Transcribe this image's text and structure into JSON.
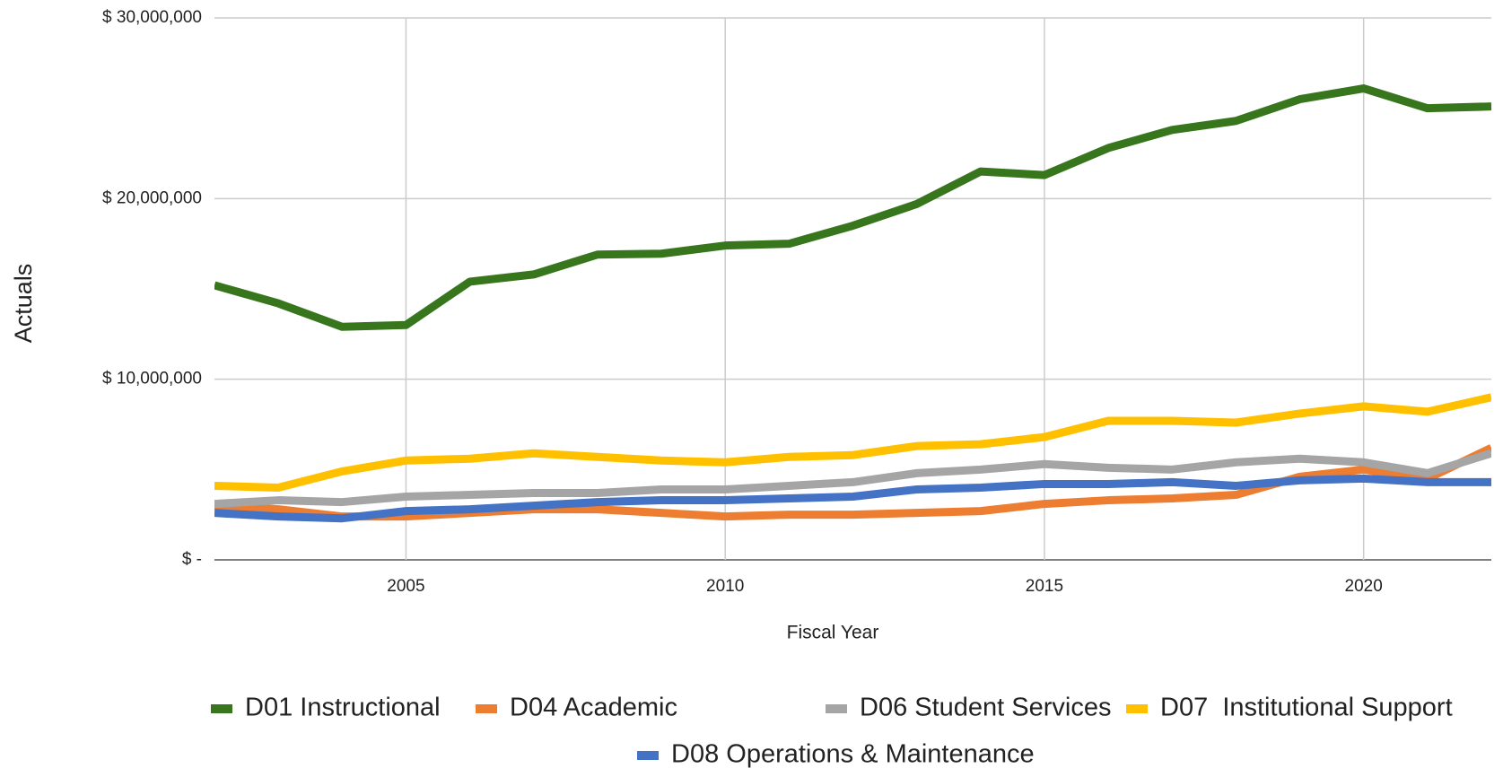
{
  "chart_data": {
    "type": "line",
    "x_label": "Fiscal Year",
    "y_label": "Actuals",
    "x": [
      2002,
      2003,
      2004,
      2005,
      2006,
      2007,
      2008,
      2009,
      2010,
      2011,
      2012,
      2013,
      2014,
      2015,
      2016,
      2017,
      2018,
      2019,
      2020,
      2021,
      2022
    ],
    "xlim": [
      2002,
      2022
    ],
    "xticks": [
      2005,
      2010,
      2015,
      2020
    ],
    "ylim": [
      0,
      30000000
    ],
    "yticks": [
      {
        "value": 0,
        "label": "$ -"
      },
      {
        "value": 10000000,
        "label": "$ 10,000,000"
      },
      {
        "value": 20000000,
        "label": "$ 20,000,000"
      },
      {
        "value": 30000000,
        "label": "$ 30,000,000"
      }
    ],
    "grid": true,
    "legend": "bottom",
    "series": [
      {
        "name": "D01 Instructional",
        "color": "#38761d",
        "values": [
          15200000,
          14200000,
          12900000,
          13000000,
          15400000,
          15800000,
          16900000,
          16950000,
          17400000,
          17500000,
          18500000,
          19700000,
          21500000,
          21300000,
          22800000,
          23800000,
          24300000,
          25500000,
          26100000,
          25000000,
          25100000
        ]
      },
      {
        "name": "D04 Academic",
        "color": "#ed7d31",
        "values": [
          3000000,
          2800000,
          2400000,
          2400000,
          2600000,
          2800000,
          2800000,
          2600000,
          2400000,
          2500000,
          2500000,
          2600000,
          2700000,
          3100000,
          3300000,
          3400000,
          3600000,
          4600000,
          5000000,
          4500000,
          6200000
        ]
      },
      {
        "name": "D06 Student Services",
        "color": "#a5a5a5",
        "values": [
          3100000,
          3300000,
          3200000,
          3500000,
          3600000,
          3700000,
          3700000,
          3900000,
          3900000,
          4100000,
          4300000,
          4800000,
          5000000,
          5300000,
          5100000,
          5000000,
          5400000,
          5600000,
          5400000,
          4800000,
          5900000
        ]
      },
      {
        "name": "D07  Institutional Support",
        "color": "#ffc000",
        "values": [
          4100000,
          4000000,
          4900000,
          5500000,
          5600000,
          5900000,
          5700000,
          5500000,
          5400000,
          5700000,
          5800000,
          6300000,
          6400000,
          6800000,
          7700000,
          7700000,
          7600000,
          8100000,
          8500000,
          8200000,
          9000000
        ]
      },
      {
        "name": "D08 Operations & Maintenance",
        "color": "#4472c4",
        "values": [
          2600000,
          2400000,
          2300000,
          2700000,
          2800000,
          3000000,
          3200000,
          3300000,
          3300000,
          3400000,
          3500000,
          3900000,
          4000000,
          4200000,
          4200000,
          4300000,
          4100000,
          4400000,
          4500000,
          4300000,
          4300000
        ]
      }
    ]
  }
}
